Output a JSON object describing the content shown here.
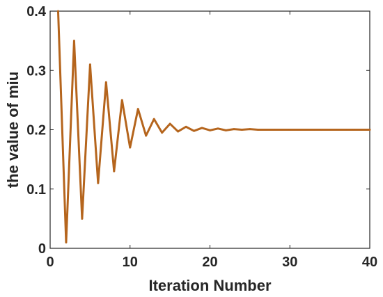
{
  "chart_data": {
    "type": "line",
    "title": "",
    "xlabel": "Iteration Number",
    "ylabel": "the value of miu",
    "xlim": [
      0,
      40
    ],
    "ylim": [
      0,
      0.4
    ],
    "xticks": [
      0,
      10,
      20,
      30,
      40
    ],
    "yticks": [
      0,
      0.1,
      0.2,
      0.3,
      0.4
    ],
    "xtick_labels": [
      "0",
      "10",
      "20",
      "30",
      "40"
    ],
    "ytick_labels": [
      "0",
      "0.1",
      "0.2",
      "0.3",
      "0.4"
    ],
    "grid": false,
    "legend": "none",
    "line_color": "#b5651d",
    "series": [
      {
        "x": [
          1,
          2,
          3,
          4,
          5,
          6,
          7,
          8,
          9,
          10,
          11,
          12,
          13,
          14,
          15,
          16,
          17,
          18,
          19,
          20,
          21,
          22,
          23,
          24,
          25,
          26,
          27,
          28,
          29,
          30,
          31,
          32,
          33,
          34,
          35,
          36,
          37,
          38,
          39,
          40
        ],
        "values": [
          0.4,
          0.01,
          0.35,
          0.05,
          0.31,
          0.11,
          0.28,
          0.13,
          0.25,
          0.17,
          0.235,
          0.19,
          0.218,
          0.195,
          0.21,
          0.197,
          0.205,
          0.198,
          0.203,
          0.199,
          0.202,
          0.199,
          0.201,
          0.2,
          0.201,
          0.2,
          0.2,
          0.2,
          0.2,
          0.2,
          0.2,
          0.2,
          0.2,
          0.2,
          0.2,
          0.2,
          0.2,
          0.2,
          0.2,
          0.2
        ]
      }
    ]
  }
}
